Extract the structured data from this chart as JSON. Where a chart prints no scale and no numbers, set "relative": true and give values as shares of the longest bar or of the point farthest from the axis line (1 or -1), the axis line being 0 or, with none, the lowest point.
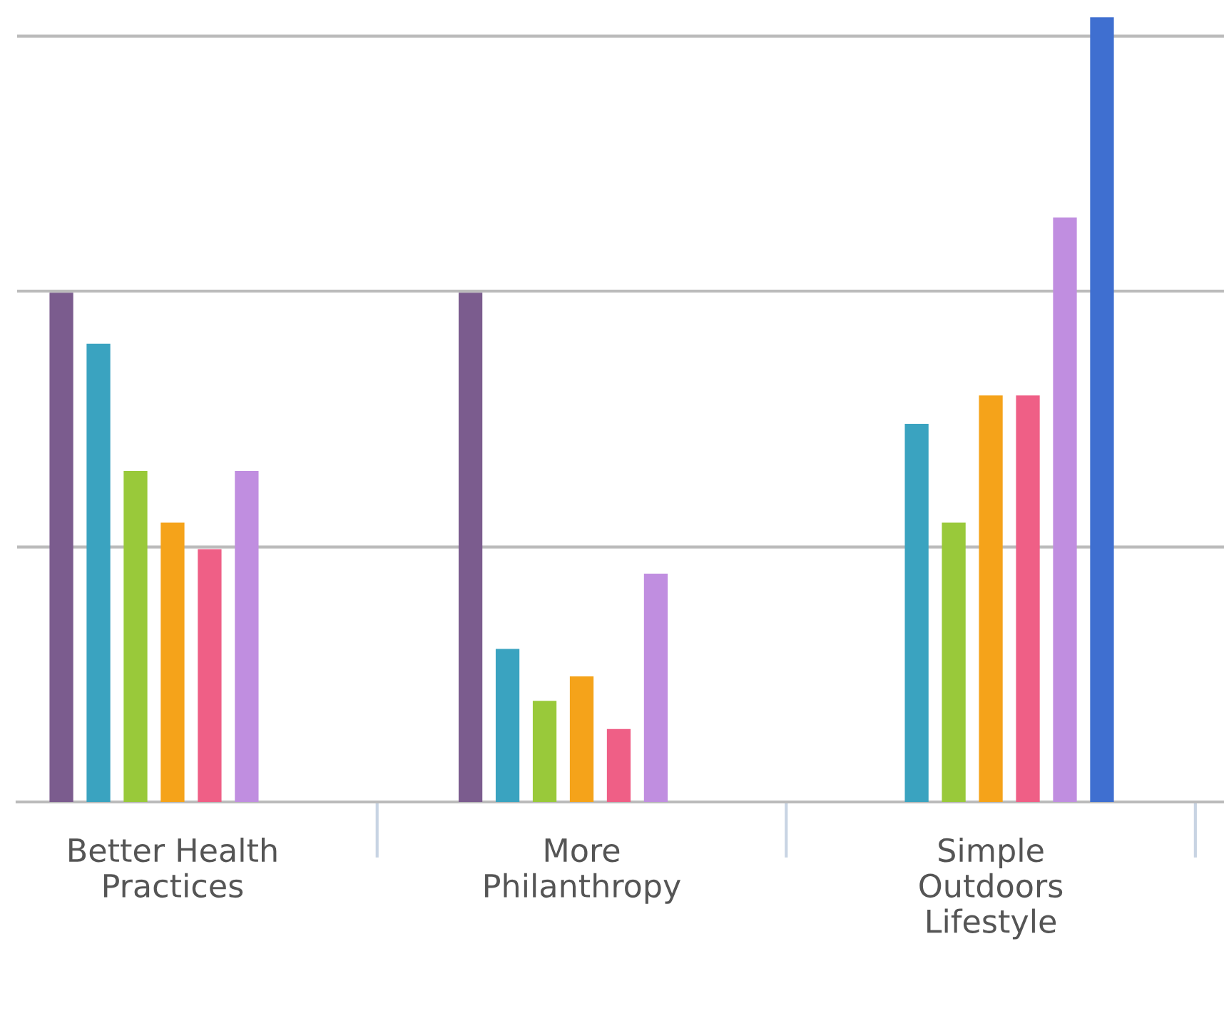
{
  "chart_data": {
    "type": "bar",
    "relative": true,
    "ref_lines": [
      {
        "axis": "y",
        "value": 0.325,
        "color": "#bbbbbb"
      },
      {
        "axis": "y",
        "value": 0.651,
        "color": "#bbbbbb"
      },
      {
        "axis": "y",
        "value": 0.976,
        "color": "#bbbbbb"
      }
    ],
    "categories": [
      "Better Health\nPractices",
      "More\nPhilanthropy",
      "Simple\nOutdoors\nLifestyle"
    ],
    "series": [
      {
        "color": "#7b5c8e",
        "values": [
          0.649,
          0.649,
          null
        ]
      },
      {
        "color": "#3aa3c0",
        "values": [
          0.584,
          0.195,
          0.482
        ]
      },
      {
        "color": "#99c93a",
        "values": [
          0.422,
          0.129,
          0.356
        ]
      },
      {
        "color": "#f5a31a",
        "values": [
          0.356,
          0.16,
          0.518
        ]
      },
      {
        "color": "#ef5f86",
        "values": [
          0.322,
          0.093,
          0.518
        ]
      },
      {
        "color": "#c08ee0",
        "values": [
          0.422,
          0.291,
          0.745
        ]
      },
      {
        "color": "#3f6fd0",
        "values": [
          null,
          null,
          1.0
        ]
      }
    ]
  }
}
